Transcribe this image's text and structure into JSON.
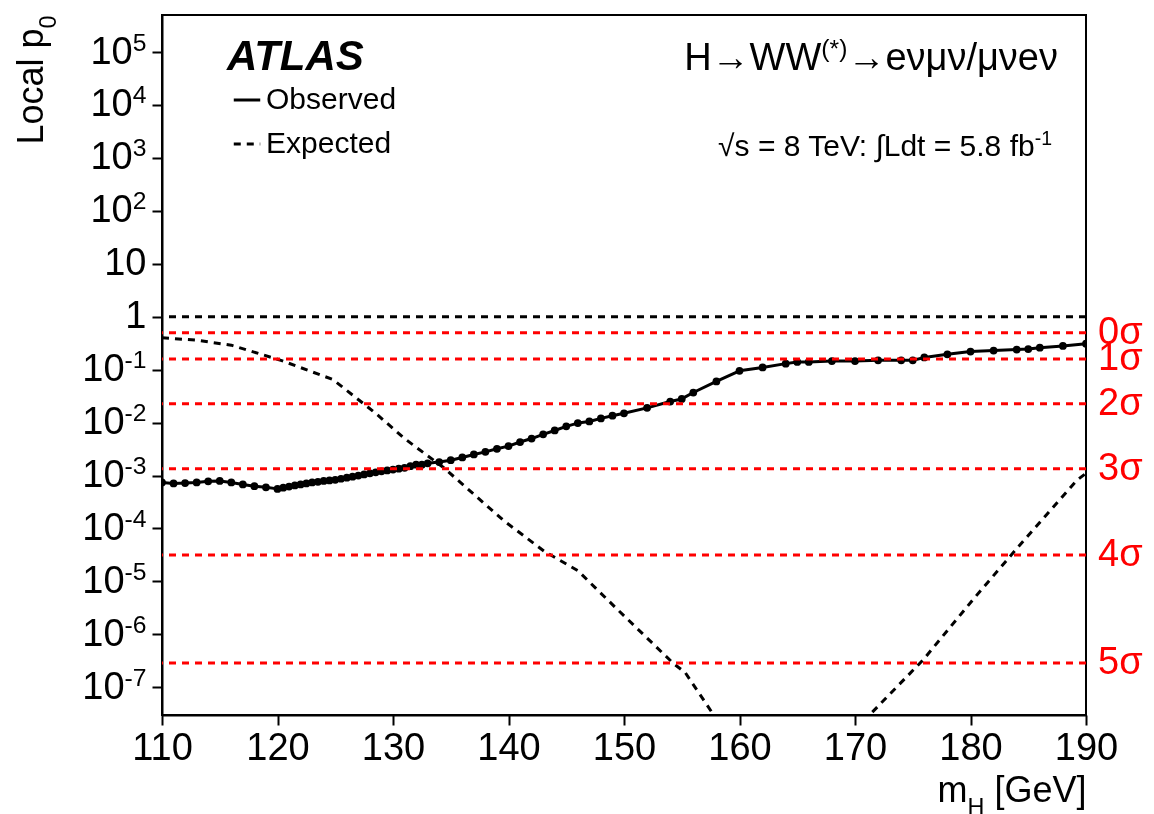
{
  "chart_data": {
    "type": "line",
    "xlabel": "m$_{H}$ [GeV]",
    "ylabel": "Local p$_{0}$",
    "annotations": [
      "ATLAS",
      "H→WW$^{(*)}$→eνμν/μνeν",
      "√s = 8 TeV: ∫Ldt = 5.8 fb$^{-1}$"
    ],
    "series": [
      {
        "name": "Observed",
        "color": "#000000",
        "marker": "circle",
        "line_style": "solid",
        "x": [
          110,
          111,
          112,
          113,
          114,
          115,
          116,
          117,
          118,
          119,
          120,
          120.5,
          121,
          121.5,
          122,
          122.5,
          123,
          123.5,
          124,
          124.5,
          125,
          125.5,
          126,
          126.5,
          127,
          127.5,
          128,
          128.5,
          129,
          129.5,
          130,
          130.5,
          131,
          131.5,
          132,
          132.5,
          133,
          134,
          135,
          136,
          137,
          138,
          139,
          140,
          141,
          142,
          143,
          144,
          145,
          146,
          147,
          148,
          149,
          150,
          152,
          154,
          155,
          156,
          158,
          160,
          162,
          164,
          165,
          166,
          168,
          170,
          172,
          174,
          175,
          176,
          178,
          180,
          182,
          184,
          185,
          186,
          188,
          190
        ],
        "values": [
          0.00074,
          0.00071,
          0.00072,
          0.00074,
          0.00078,
          0.00079,
          0.00074,
          0.00068,
          0.00063,
          0.0006,
          0.00056,
          0.00059,
          0.00062,
          0.00065,
          0.00068,
          0.00071,
          0.00074,
          0.00076,
          0.00079,
          0.00081,
          0.00083,
          0.00087,
          0.00091,
          0.00095,
          0.001,
          0.00105,
          0.0011,
          0.00115,
          0.0012,
          0.00125,
          0.0013,
          0.00135,
          0.0014,
          0.0015,
          0.0016,
          0.0016,
          0.0017,
          0.0018,
          0.00195,
          0.0022,
          0.0025,
          0.0028,
          0.0032,
          0.0036,
          0.0043,
          0.005,
          0.006,
          0.0071,
          0.0085,
          0.0098,
          0.0105,
          0.012,
          0.0135,
          0.015,
          0.019,
          0.025,
          0.028,
          0.037,
          0.06,
          0.095,
          0.11,
          0.13,
          0.14,
          0.14,
          0.145,
          0.145,
          0.15,
          0.15,
          0.15,
          0.17,
          0.195,
          0.22,
          0.23,
          0.24,
          0.245,
          0.26,
          0.28,
          0.31
        ]
      },
      {
        "name": "Expected",
        "color": "#000000",
        "marker": "none",
        "line_style": "dashed",
        "x": [
          110,
          113,
          116,
          120.3,
          124.8,
          128.5,
          131,
          134.4,
          139.6,
          143.1,
          146,
          149.4,
          154.3,
          155.3,
          157.6,
          164,
          171.5,
          175.9,
          180.2,
          183.8,
          189.2,
          190
        ],
        "values": [
          0.4,
          0.36,
          0.29,
          0.15,
          0.065,
          0.015,
          0.005,
          0.0014,
          0.00014,
          3.7e-05,
          1.6e-05,
          3e-06,
          2.8e-07,
          1.9e-07,
          3.4e-08,
          null,
          3.4e-08,
          3.3e-07,
          4.5e-06,
          3.7e-05,
          0.00081,
          0.0011
        ]
      }
    ],
    "log": "y",
    "xlim": [
      110,
      190
    ],
    "xticks": [
      110,
      120,
      130,
      140,
      150,
      160,
      170,
      180,
      190
    ],
    "ylim": [
      3e-08,
      500000.0
    ],
    "yticks": [
      {
        "value": 1e-07,
        "label": "10$^{-7}$"
      },
      {
        "value": 1e-06,
        "label": "10$^{-6}$"
      },
      {
        "value": 1e-05,
        "label": "10$^{-5}$"
      },
      {
        "value": 0.0001,
        "label": "10$^{-4}$"
      },
      {
        "value": 0.001,
        "label": "10$^{-3}$"
      },
      {
        "value": 0.01,
        "label": "10$^{-2}$"
      },
      {
        "value": 0.1,
        "label": "10$^{-1}$"
      },
      1,
      10,
      {
        "value": 100,
        "label": "10$^{2}$"
      },
      {
        "value": 1000,
        "label": "10$^{3}$"
      },
      {
        "value": 10000,
        "label": "10$^{4}$"
      },
      {
        "value": 100000,
        "label": "10$^{5}$"
      }
    ],
    "ref_lines": [
      {
        "axis": "y",
        "value": 1,
        "label": null,
        "color": "#000000",
        "line_style": "dashed"
      },
      {
        "axis": "y",
        "value": 0.5,
        "label": "0σ",
        "color": "#ff0000",
        "line_style": "dashed"
      },
      {
        "axis": "y",
        "value": 0.159,
        "label": "1σ",
        "color": "#ff0000",
        "line_style": "dashed"
      },
      {
        "axis": "y",
        "value": 0.0228,
        "label": "2σ",
        "color": "#ff0000",
        "line_style": "dashed"
      },
      {
        "axis": "y",
        "value": 0.00135,
        "label": "3σ",
        "color": "#ff0000",
        "line_style": "dashed"
      },
      {
        "axis": "y",
        "value": 3.17e-05,
        "label": "4σ",
        "color": "#ff0000",
        "line_style": "dashed"
      },
      {
        "axis": "y",
        "value": 2.87e-07,
        "label": "5σ",
        "color": "#ff0000",
        "line_style": "dashed"
      }
    ],
    "grid": false,
    "legend": "top left"
  }
}
